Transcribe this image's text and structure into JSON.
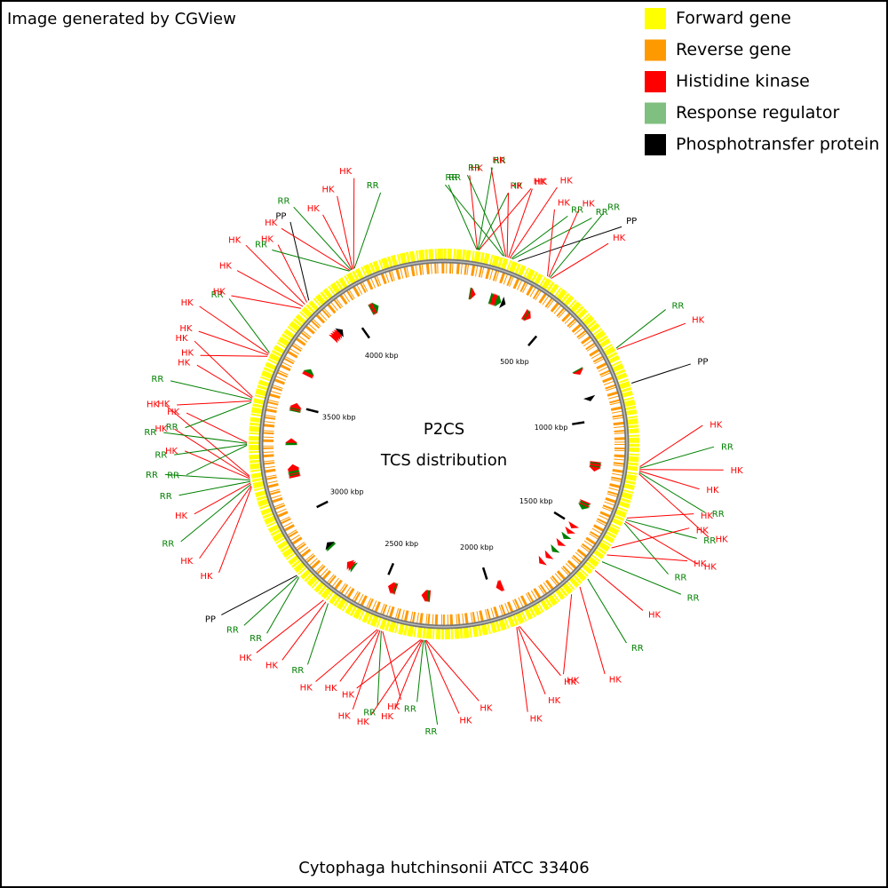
{
  "chart_data": {
    "type": "circular-genome-map",
    "credit": "Image generated by CGView",
    "title": "P2CS",
    "subtitle": "TCS distribution",
    "footer": "Cytophaga hutchinsonii ATCC 33406",
    "legend": [
      {
        "name": "Forward gene",
        "color": "#ffff00"
      },
      {
        "name": "Reverse gene",
        "color": "#ff9900"
      },
      {
        "name": "Histidine kinase",
        "color": "#ff0000"
      },
      {
        "name": "Response regulator",
        "color": "#7fbf7f"
      },
      {
        "name": "Phosphotransfer protein",
        "color": "#000000"
      }
    ],
    "xlim": [
      0,
      4433
    ],
    "xticks": [
      {
        "value": 500,
        "label": "500 kbp"
      },
      {
        "value": 1000,
        "label": "1000 kbp"
      },
      {
        "value": 1500,
        "label": "1500 kbp"
      },
      {
        "value": 2000,
        "label": "2000 kbp"
      },
      {
        "value": 2500,
        "label": "2500 kbp"
      },
      {
        "value": 3000,
        "label": "3000 kbp"
      },
      {
        "value": 3500,
        "label": "3500 kbp"
      },
      {
        "value": 4000,
        "label": "4000 kbp"
      }
    ],
    "label_colors": {
      "HK": "#ff0000",
      "RR": "#008000",
      "PP": "#000000"
    },
    "features": [
      {
        "label": "RR",
        "position": 118
      },
      {
        "label": "HK",
        "position": 120
      },
      {
        "label": "RR",
        "position": 122
      },
      {
        "label": "RR",
        "position": 124
      },
      {
        "label": "HK",
        "position": 126
      },
      {
        "label": "RR",
        "position": 215
      },
      {
        "label": "RR",
        "position": 220
      },
      {
        "label": "HK",
        "position": 225
      },
      {
        "label": "HK",
        "position": 230
      },
      {
        "label": "HK",
        "position": 235
      },
      {
        "label": "HK",
        "position": 240
      },
      {
        "label": "RR",
        "position": 245
      },
      {
        "label": "RR",
        "position": 250
      },
      {
        "label": "PP",
        "position": 272
      },
      {
        "label": "HK",
        "position": 390
      },
      {
        "label": "HK",
        "position": 395
      },
      {
        "label": "RR",
        "position": 400
      },
      {
        "label": "HK",
        "position": 405
      },
      {
        "label": "RR",
        "position": 750
      },
      {
        "label": "HK",
        "position": 755
      },
      {
        "label": "PP",
        "position": 887
      },
      {
        "label": "HK",
        "position": 1190
      },
      {
        "label": "RR",
        "position": 1195
      },
      {
        "label": "HK",
        "position": 1200
      },
      {
        "label": "HK",
        "position": 1205
      },
      {
        "label": "RR",
        "position": 1210
      },
      {
        "label": "HK",
        "position": 1215
      },
      {
        "label": "HK",
        "position": 1380
      },
      {
        "label": "RR",
        "position": 1387
      },
      {
        "label": "HK",
        "position": 1394
      },
      {
        "label": "RR",
        "position": 1400
      },
      {
        "label": "HK",
        "position": 1500
      },
      {
        "label": "HK",
        "position": 1530
      },
      {
        "label": "RR",
        "position": 1560
      },
      {
        "label": "HK",
        "position": 1600
      },
      {
        "label": "RR",
        "position": 1640
      },
      {
        "label": "HK",
        "position": 1680
      },
      {
        "label": "HK",
        "position": 1720
      },
      {
        "label": "HK",
        "position": 1940
      },
      {
        "label": "HK",
        "position": 1945
      },
      {
        "label": "HK",
        "position": 1950
      },
      {
        "label": "HK",
        "position": 2280
      },
      {
        "label": "HK",
        "position": 2283
      },
      {
        "label": "RR",
        "position": 2286
      },
      {
        "label": "RR",
        "position": 2290
      },
      {
        "label": "HK",
        "position": 2293
      },
      {
        "label": "HK",
        "position": 2296
      },
      {
        "label": "HK",
        "position": 2300
      },
      {
        "label": "HK",
        "position": 2440
      },
      {
        "label": "RR",
        "position": 2445
      },
      {
        "label": "HK",
        "position": 2450
      },
      {
        "label": "HK",
        "position": 2455
      },
      {
        "label": "HK",
        "position": 2460
      },
      {
        "label": "RR",
        "position": 2660
      },
      {
        "label": "HK",
        "position": 2670
      },
      {
        "label": "HK",
        "position": 2680
      },
      {
        "label": "RR",
        "position": 2800
      },
      {
        "label": "RR",
        "position": 2805
      },
      {
        "label": "PP",
        "position": 2810
      },
      {
        "label": "HK",
        "position": 3170
      },
      {
        "label": "HK",
        "position": 3175
      },
      {
        "label": "RR",
        "position": 3180
      },
      {
        "label": "HK",
        "position": 3185
      },
      {
        "label": "RR",
        "position": 3190
      },
      {
        "label": "RR",
        "position": 3195
      },
      {
        "label": "HK",
        "position": 3200
      },
      {
        "label": "HK",
        "position": 3205
      },
      {
        "label": "HK",
        "position": 3210
      },
      {
        "label": "RR",
        "position": 3320
      },
      {
        "label": "RR",
        "position": 3323
      },
      {
        "label": "RR",
        "position": 3327
      },
      {
        "label": "HK",
        "position": 3330
      },
      {
        "label": "RR",
        "position": 3475
      },
      {
        "label": "HK",
        "position": 3480
      },
      {
        "label": "RR",
        "position": 3485
      },
      {
        "label": "HK",
        "position": 3490
      },
      {
        "label": "HK",
        "position": 3495
      },
      {
        "label": "HK",
        "position": 3650
      },
      {
        "label": "HK",
        "position": 3655
      },
      {
        "label": "HK",
        "position": 3660
      },
      {
        "label": "RR",
        "position": 3665
      },
      {
        "label": "HK",
        "position": 3860
      },
      {
        "label": "HK",
        "position": 3870
      },
      {
        "label": "HK",
        "position": 3880
      },
      {
        "label": "HK",
        "position": 3890
      },
      {
        "label": "PP",
        "position": 3900
      },
      {
        "label": "RR",
        "position": 4080
      },
      {
        "label": "HK",
        "position": 4083
      },
      {
        "label": "RR",
        "position": 4087
      },
      {
        "label": "HK",
        "position": 4090
      },
      {
        "label": "HK",
        "position": 4093
      },
      {
        "label": "HK",
        "position": 4097
      },
      {
        "label": "RR",
        "position": 4100
      }
    ]
  }
}
